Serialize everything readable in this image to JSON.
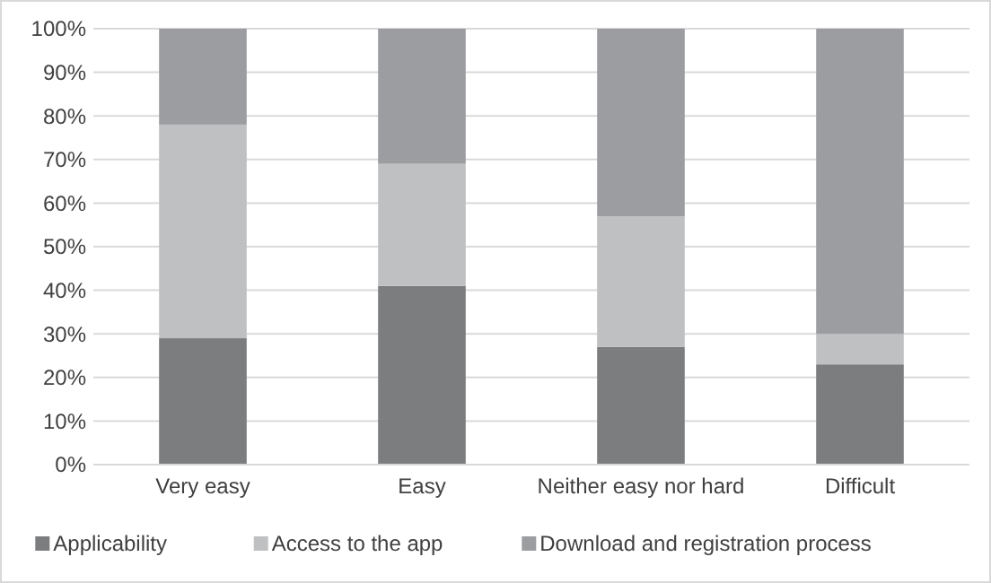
{
  "chart_data": {
    "type": "bar",
    "stacked": true,
    "categories": [
      "Very easy",
      "Easy",
      "Neither easy nor hard",
      "Difficult"
    ],
    "series": [
      {
        "name": "Applicability",
        "color": "#7c7d7f",
        "values": [
          29,
          41,
          27,
          23
        ]
      },
      {
        "name": "Access to the app",
        "color": "#bfc0c2",
        "values": [
          49,
          28,
          30,
          7
        ]
      },
      {
        "name": "Download and registration process",
        "color": "#9c9da1",
        "values": [
          22,
          31,
          43,
          70
        ]
      }
    ],
    "ylim": [
      0,
      100
    ],
    "yticks": [
      {
        "value": 0,
        "label": "0%"
      },
      {
        "value": 10,
        "label": "10%"
      },
      {
        "value": 20,
        "label": "20%"
      },
      {
        "value": 30,
        "label": "30%"
      },
      {
        "value": 40,
        "label": "40%"
      },
      {
        "value": 50,
        "label": "50%"
      },
      {
        "value": 60,
        "label": "60%"
      },
      {
        "value": 70,
        "label": "70%"
      },
      {
        "value": 80,
        "label": "80%"
      },
      {
        "value": 90,
        "label": "90%"
      },
      {
        "value": 100,
        "label": "100%"
      }
    ],
    "grid": "y",
    "legend": "bottom"
  }
}
